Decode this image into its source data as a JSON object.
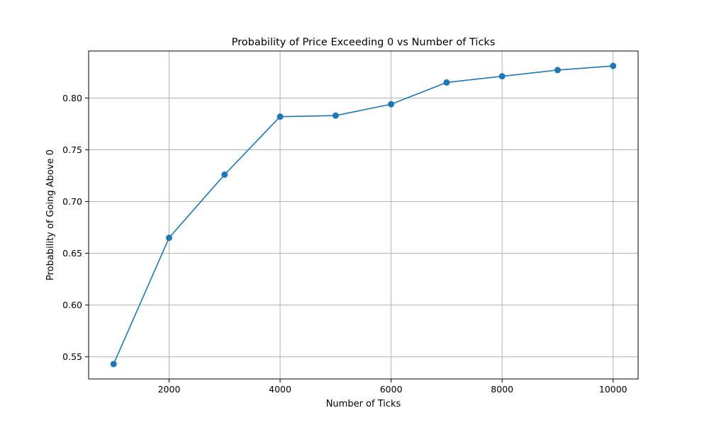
{
  "chart_data": {
    "type": "line",
    "title": "Probability of Price Exceeding 0 vs Number of Ticks",
    "xlabel": "Number of Ticks",
    "ylabel": "Probability of Going Above 0",
    "x": [
      1000,
      2000,
      3000,
      4000,
      5000,
      6000,
      7000,
      8000,
      9000,
      10000
    ],
    "series": [
      {
        "values": [
          0.543,
          0.665,
          0.726,
          0.782,
          0.783,
          0.794,
          0.815,
          0.821,
          0.827,
          0.831
        ]
      }
    ],
    "xlim": [
      550,
      10450
    ],
    "ylim": [
      0.5286,
      0.8454
    ],
    "xticks": [
      2000,
      4000,
      6000,
      8000,
      10000
    ],
    "xtick_labels": [
      "2000",
      "4000",
      "6000",
      "8000",
      "10000"
    ],
    "yticks": [
      0.55,
      0.6,
      0.65,
      0.7,
      0.75,
      0.8
    ],
    "ytick_labels": [
      "0.55",
      "0.60",
      "0.65",
      "0.70",
      "0.75",
      "0.80"
    ],
    "grid": true,
    "marker": "circle",
    "color": "#1f77b4"
  }
}
